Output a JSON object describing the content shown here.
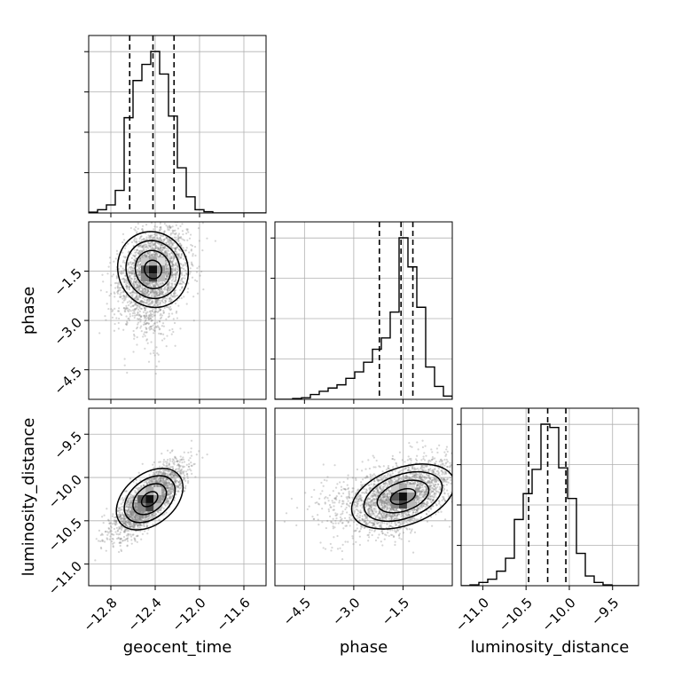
{
  "chart_data": {
    "type": "corner",
    "parameters": [
      "geocent_time",
      "phase",
      "luminosity_distance"
    ],
    "ranges": {
      "geocent_time": [
        -13.0,
        -11.4
      ],
      "phase": [
        -5.4,
        0.0
      ],
      "luminosity_distance": [
        -11.25,
        -9.2
      ]
    },
    "tick_labels": {
      "geocent_time": [
        "−12.8",
        "−12.4",
        "−12.0",
        "−11.6"
      ],
      "phase": [
        "−4.5",
        "−3.0",
        "−1.5"
      ],
      "luminosity_distance": [
        "−11.0",
        "−10.5",
        "−10.0",
        "−9.5"
      ]
    },
    "tick_values": {
      "geocent_time": [
        -12.8,
        -12.4,
        -12.0,
        -11.6
      ],
      "phase": [
        -4.5,
        -3.0,
        -1.5
      ],
      "luminosity_distance": [
        -11.0,
        -10.5,
        -10.0,
        -9.5
      ]
    },
    "quantiles": {
      "geocent_time": [
        -12.63,
        -12.42,
        -12.23
      ],
      "phase": [
        -2.22,
        -1.56,
        -1.2
      ],
      "luminosity_distance": [
        -10.47,
        -10.25,
        -10.04
      ]
    },
    "histograms": {
      "geocent_time": {
        "edges": [
          -13.0,
          -12.92,
          -12.84,
          -12.76,
          -12.68,
          -12.6,
          -12.52,
          -12.44,
          -12.36,
          -12.28,
          -12.2,
          -12.12,
          -12.04,
          -11.96,
          -11.88,
          -11.8,
          -11.72,
          -11.64,
          -11.56,
          -11.48,
          -11.4
        ],
        "counts": [
          0.5,
          2,
          5,
          14,
          59,
          82,
          92,
          100,
          86,
          60,
          28,
          10,
          2,
          0.8,
          0,
          0,
          0,
          0,
          0,
          0
        ]
      },
      "phase": {
        "edges": [
          -5.4,
          -5.13,
          -4.86,
          -4.59,
          -4.32,
          -4.05,
          -3.78,
          -3.51,
          -3.24,
          -2.97,
          -2.7,
          -2.43,
          -2.16,
          -1.89,
          -1.62,
          -1.35,
          -1.08,
          -0.81,
          -0.54,
          -0.27,
          0.0
        ],
        "counts": [
          0,
          0,
          0.5,
          1,
          3,
          5,
          7,
          9,
          13,
          17,
          23,
          31,
          38,
          54,
          100,
          82,
          57,
          20,
          8,
          2
        ]
      },
      "luminosity_distance": {
        "edges": [
          -11.25,
          -11.1475,
          -11.045,
          -10.9425,
          -10.84,
          -10.7375,
          -10.635,
          -10.5325,
          -10.43,
          -10.3275,
          -10.225,
          -10.1225,
          -10.02,
          -9.9175,
          -9.815,
          -9.7125,
          -9.61,
          -9.5075,
          -9.405,
          -9.3025,
          -9.2
        ],
        "counts": [
          0,
          0.5,
          2,
          4,
          9,
          17,
          41,
          57,
          72,
          100,
          98,
          73,
          54,
          20,
          6,
          2,
          0.5,
          0,
          0,
          0
        ]
      }
    },
    "pairs": [
      {
        "x": "geocent_time",
        "y": "phase",
        "center": [
          -12.42,
          -1.45
        ],
        "sigma": [
          0.15,
          0.65
        ],
        "corr": 0.3,
        "tail": [
          0,
          -0.75
        ]
      },
      {
        "x": "geocent_time",
        "y": "luminosity_distance",
        "center": [
          -12.45,
          -10.25
        ],
        "sigma": [
          0.15,
          0.2
        ],
        "corr": 0.78,
        "tail": [
          0,
          0
        ]
      },
      {
        "x": "phase",
        "y": "luminosity_distance",
        "center": [
          -1.5,
          -10.22
        ],
        "sigma": [
          0.75,
          0.2
        ],
        "corr": 0.5,
        "tail": [
          -0.9,
          0
        ]
      }
    ],
    "contour_levels": [
      0.11,
      0.39,
      0.68,
      0.86
    ],
    "grid": true,
    "colors": {
      "line": "#000000",
      "scatter": "#888888",
      "grid": "#b0b0b0"
    }
  }
}
